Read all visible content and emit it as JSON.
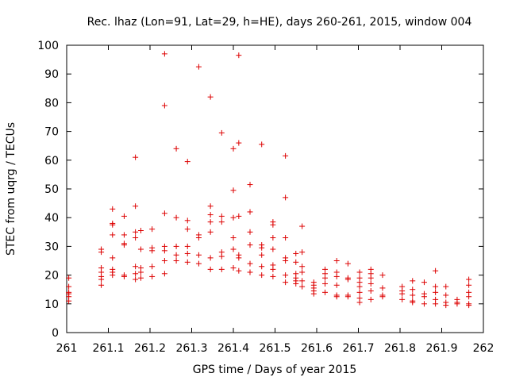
{
  "chart_data": {
    "type": "scatter",
    "title": "Rec. lhaz (Lon=91, Lat=29, h=HE), days 260-261, 2015, window 004",
    "xlabel": "GPS time / Days of year 2015",
    "ylabel": "STEC from uqrg / TECUs",
    "xlim": [
      261,
      262
    ],
    "ylim": [
      0,
      100
    ],
    "xticks": [
      261,
      261.1,
      261.2,
      261.3,
      261.4,
      261.5,
      261.6,
      261.7,
      261.8,
      261.9,
      262
    ],
    "xtick_labels": [
      "261",
      "261.1",
      "261.2",
      "261.3",
      "261.4",
      "261.5",
      "261.6",
      "261.7",
      "261.8",
      "261.9",
      "262"
    ],
    "yticks": [
      0,
      10,
      20,
      30,
      40,
      50,
      60,
      70,
      80,
      90,
      100
    ],
    "ytick_labels": [
      "0",
      "10",
      "20",
      "30",
      "40",
      "50",
      "60",
      "70",
      "80",
      "90",
      "100"
    ],
    "grid": false,
    "marker": "plus",
    "color": "#dd0000",
    "series": [
      {
        "points": [
          [
            261.005,
            19
          ],
          [
            261.005,
            16
          ],
          [
            261.005,
            14
          ],
          [
            261.005,
            12.5
          ],
          [
            261.005,
            11
          ],
          [
            261.005,
            13.5
          ],
          [
            261.083,
            29
          ],
          [
            261.083,
            28
          ],
          [
            261.083,
            22.5
          ],
          [
            261.083,
            21
          ],
          [
            261.083,
            19.5
          ],
          [
            261.083,
            18.5
          ],
          [
            261.083,
            16.5
          ],
          [
            261.11,
            43
          ],
          [
            261.11,
            38
          ],
          [
            261.11,
            37.5
          ],
          [
            261.11,
            34
          ],
          [
            261.11,
            26
          ],
          [
            261.11,
            22
          ],
          [
            261.11,
            21
          ],
          [
            261.11,
            20
          ],
          [
            261.138,
            40.5
          ],
          [
            261.138,
            34
          ],
          [
            261.138,
            31
          ],
          [
            261.138,
            30.5
          ],
          [
            261.138,
            20
          ],
          [
            261.138,
            19.5
          ],
          [
            261.165,
            61
          ],
          [
            261.165,
            44
          ],
          [
            261.165,
            35
          ],
          [
            261.165,
            33
          ],
          [
            261.165,
            23
          ],
          [
            261.165,
            20.5
          ],
          [
            261.165,
            18.5
          ],
          [
            261.178,
            35.5
          ],
          [
            261.178,
            29
          ],
          [
            261.178,
            22.5
          ],
          [
            261.178,
            21
          ],
          [
            261.178,
            19
          ],
          [
            261.205,
            36
          ],
          [
            261.205,
            29.5
          ],
          [
            261.205,
            28.5
          ],
          [
            261.205,
            23
          ],
          [
            261.205,
            19.5
          ],
          [
            261.235,
            97
          ],
          [
            261.235,
            79
          ],
          [
            261.235,
            41.5
          ],
          [
            261.235,
            30
          ],
          [
            261.235,
            28.5
          ],
          [
            261.235,
            25
          ],
          [
            261.235,
            20.5
          ],
          [
            261.263,
            64
          ],
          [
            261.263,
            40
          ],
          [
            261.263,
            30
          ],
          [
            261.263,
            27
          ],
          [
            261.263,
            25
          ],
          [
            261.29,
            59.5
          ],
          [
            261.29,
            39
          ],
          [
            261.29,
            36
          ],
          [
            261.29,
            30
          ],
          [
            261.29,
            27.5
          ],
          [
            261.29,
            24.5
          ],
          [
            261.317,
            92.5
          ],
          [
            261.317,
            34
          ],
          [
            261.317,
            33
          ],
          [
            261.317,
            27
          ],
          [
            261.317,
            24
          ],
          [
            261.345,
            82
          ],
          [
            261.345,
            44
          ],
          [
            261.345,
            41
          ],
          [
            261.345,
            38.5
          ],
          [
            261.345,
            35
          ],
          [
            261.345,
            26
          ],
          [
            261.345,
            22
          ],
          [
            261.372,
            69.5
          ],
          [
            261.372,
            40.5
          ],
          [
            261.372,
            38.5
          ],
          [
            261.372,
            28
          ],
          [
            261.372,
            26.5
          ],
          [
            261.372,
            22
          ],
          [
            261.4,
            64
          ],
          [
            261.4,
            49.5
          ],
          [
            261.4,
            40
          ],
          [
            261.4,
            33
          ],
          [
            261.4,
            29
          ],
          [
            261.4,
            22.5
          ],
          [
            261.413,
            96.5
          ],
          [
            261.413,
            66
          ],
          [
            261.413,
            40.5
          ],
          [
            261.413,
            27
          ],
          [
            261.413,
            26
          ],
          [
            261.413,
            21.5
          ],
          [
            261.44,
            51.5
          ],
          [
            261.44,
            42
          ],
          [
            261.44,
            35
          ],
          [
            261.44,
            30.5
          ],
          [
            261.44,
            24
          ],
          [
            261.44,
            21
          ],
          [
            261.468,
            65.5
          ],
          [
            261.468,
            30.5
          ],
          [
            261.468,
            29.5
          ],
          [
            261.468,
            27
          ],
          [
            261.468,
            23
          ],
          [
            261.468,
            20
          ],
          [
            261.495,
            38.5
          ],
          [
            261.495,
            37.5
          ],
          [
            261.495,
            33
          ],
          [
            261.495,
            29
          ],
          [
            261.495,
            23.5
          ],
          [
            261.495,
            22
          ],
          [
            261.495,
            19.5
          ],
          [
            261.525,
            61.5
          ],
          [
            261.525,
            47
          ],
          [
            261.525,
            33
          ],
          [
            261.525,
            26
          ],
          [
            261.525,
            25
          ],
          [
            261.525,
            20
          ],
          [
            261.525,
            17.5
          ],
          [
            261.55,
            27.5
          ],
          [
            261.55,
            24.5
          ],
          [
            261.55,
            20.5
          ],
          [
            261.55,
            19
          ],
          [
            261.55,
            18
          ],
          [
            261.55,
            17
          ],
          [
            261.565,
            37
          ],
          [
            261.565,
            28
          ],
          [
            261.565,
            23
          ],
          [
            261.565,
            21
          ],
          [
            261.565,
            18
          ],
          [
            261.565,
            16
          ],
          [
            261.593,
            17.5
          ],
          [
            261.593,
            16.5
          ],
          [
            261.593,
            15.5
          ],
          [
            261.593,
            14.5
          ],
          [
            261.593,
            13.5
          ],
          [
            261.62,
            22
          ],
          [
            261.62,
            20.5
          ],
          [
            261.62,
            19
          ],
          [
            261.62,
            17
          ],
          [
            261.62,
            14
          ],
          [
            261.648,
            25
          ],
          [
            261.648,
            21
          ],
          [
            261.648,
            19.5
          ],
          [
            261.648,
            16.5
          ],
          [
            261.648,
            13
          ],
          [
            261.648,
            12.5
          ],
          [
            261.675,
            24
          ],
          [
            261.675,
            19
          ],
          [
            261.675,
            18.5
          ],
          [
            261.675,
            13
          ],
          [
            261.675,
            12.5
          ],
          [
            261.703,
            21
          ],
          [
            261.703,
            19
          ],
          [
            261.703,
            17.5
          ],
          [
            261.703,
            16
          ],
          [
            261.703,
            14
          ],
          [
            261.703,
            12
          ],
          [
            261.703,
            10.5
          ],
          [
            261.73,
            22
          ],
          [
            261.73,
            20.5
          ],
          [
            261.73,
            19
          ],
          [
            261.73,
            17
          ],
          [
            261.73,
            14.5
          ],
          [
            261.73,
            11.5
          ],
          [
            261.758,
            20
          ],
          [
            261.758,
            15.5
          ],
          [
            261.758,
            13
          ],
          [
            261.758,
            12.5
          ],
          [
            261.805,
            16
          ],
          [
            261.805,
            14.5
          ],
          [
            261.805,
            13.5
          ],
          [
            261.805,
            11.5
          ],
          [
            261.83,
            18
          ],
          [
            261.83,
            15
          ],
          [
            261.83,
            13
          ],
          [
            261.83,
            11
          ],
          [
            261.83,
            10.5
          ],
          [
            261.858,
            17.5
          ],
          [
            261.858,
            13.5
          ],
          [
            261.858,
            12.5
          ],
          [
            261.858,
            10
          ],
          [
            261.885,
            21.5
          ],
          [
            261.885,
            16
          ],
          [
            261.885,
            14
          ],
          [
            261.885,
            11.5
          ],
          [
            261.885,
            10
          ],
          [
            261.91,
            16
          ],
          [
            261.91,
            13
          ],
          [
            261.91,
            10.5
          ],
          [
            261.91,
            9.5
          ],
          [
            261.937,
            11.5
          ],
          [
            261.937,
            10.5
          ],
          [
            261.937,
            10
          ],
          [
            261.965,
            18.5
          ],
          [
            261.965,
            16.5
          ],
          [
            261.965,
            14
          ],
          [
            261.965,
            12.5
          ],
          [
            261.965,
            10
          ],
          [
            261.965,
            9.5
          ]
        ]
      }
    ]
  }
}
